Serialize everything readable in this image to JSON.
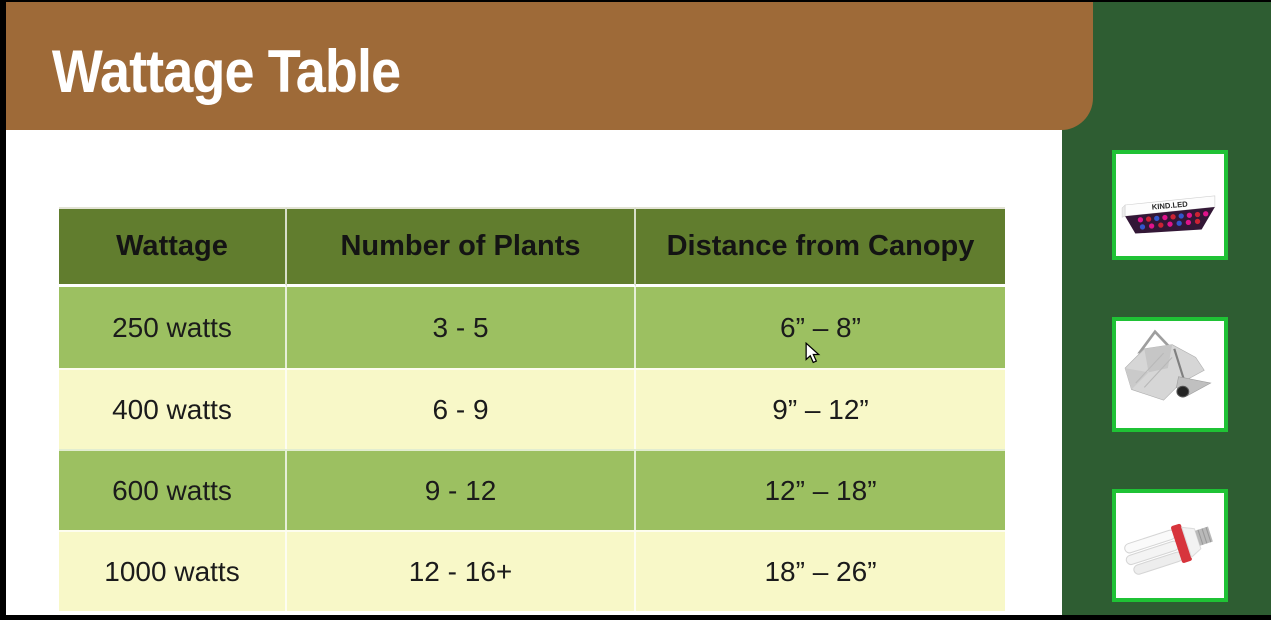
{
  "slide": {
    "title": "Wattage Table",
    "colors": {
      "banner_brown": "#9e6a38",
      "sidebar_green": "#2e5d32",
      "table_header_green": "#617d2e",
      "row_green": "#9cc061",
      "row_yellow": "#f8f8c8",
      "product_border_green": "#1fc235",
      "title_text": "#ffffff",
      "table_text": "#1b1b1b"
    }
  },
  "table": {
    "columns": [
      "Wattage",
      "Number of Plants",
      "Distance from Canopy"
    ],
    "rows": [
      [
        "250 watts",
        "3 - 5",
        "6” – 8”"
      ],
      [
        "400 watts",
        "6 - 9",
        "9” – 12”"
      ],
      [
        "600 watts",
        "9 - 12",
        "12” – 18”"
      ],
      [
        "1000 watts",
        "12 - 16+",
        "18” – 26”"
      ]
    ]
  },
  "sidebar": {
    "products": [
      {
        "name": "kind-led-grow-light-panel",
        "brand_text": "KIND.LED"
      },
      {
        "name": "wing-reflector-hood"
      },
      {
        "name": "cfl-grow-bulb"
      }
    ]
  }
}
